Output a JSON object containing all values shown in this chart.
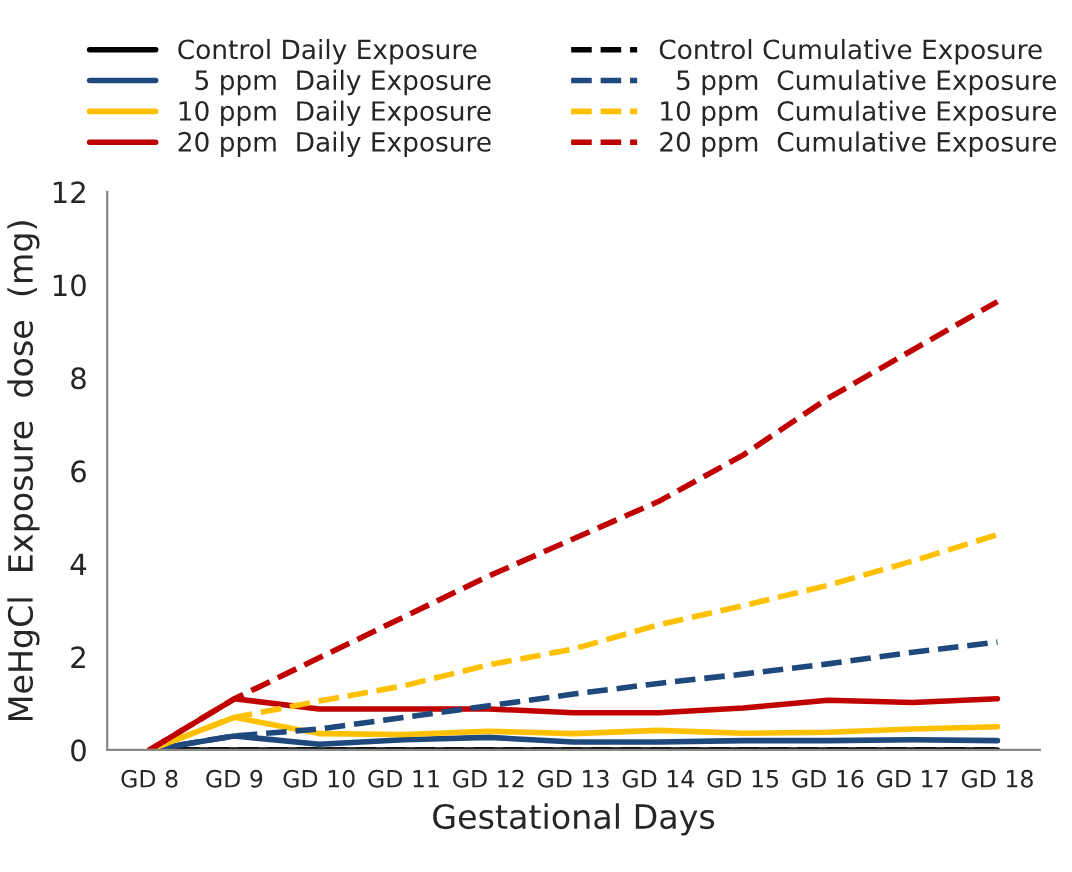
{
  "chart_data": {
    "type": "line",
    "xlabel": "Gestational Days",
    "ylabel": "MeHgCl  Exposure  dose  (mg)",
    "categories": [
      "GD 8",
      "GD 9",
      "GD 10",
      "GD 11",
      "GD 12",
      "GD 13",
      "GD 14",
      "GD 15",
      "GD 16",
      "GD 17",
      "GD 18"
    ],
    "ylim": [
      0,
      12
    ],
    "yticks": [
      0,
      2,
      4,
      6,
      8,
      10,
      12
    ],
    "grid": false,
    "legend": "top",
    "marker": "none",
    "series": [
      {
        "name": "Control Daily Exposure",
        "color": "#000000",
        "line_style": "solid",
        "values": [
          0,
          0,
          0,
          0,
          0,
          0,
          0,
          0,
          0,
          0,
          0
        ]
      },
      {
        "name": "  5 ppm  Daily Exposure",
        "color": "#1f497d",
        "line_style": "solid",
        "values": [
          0,
          0.3,
          0.12,
          0.22,
          0.27,
          0.17,
          0.17,
          0.2,
          0.2,
          0.22,
          0.2
        ]
      },
      {
        "name": "10 ppm  Daily Exposure",
        "color": "#ffc000",
        "line_style": "solid",
        "values": [
          0,
          0.7,
          0.35,
          0.33,
          0.4,
          0.35,
          0.42,
          0.36,
          0.38,
          0.45,
          0.5
        ]
      },
      {
        "name": "20 ppm  Daily Exposure",
        "color": "#c00000",
        "line_style": "solid",
        "values": [
          0,
          1.1,
          0.88,
          0.88,
          0.88,
          0.8,
          0.8,
          0.9,
          1.07,
          1.02,
          1.1
        ]
      },
      {
        "name": "Control Cumulative Exposure",
        "color": "#000000",
        "line_style": "dashed",
        "values": [
          0,
          0,
          0,
          0,
          0,
          0,
          0,
          0,
          0,
          0,
          0
        ]
      },
      {
        "name": "  5 ppm  Cumulative Exposure",
        "color": "#1f497d",
        "line_style": "dashed",
        "values": [
          0,
          0.3,
          0.45,
          0.7,
          0.95,
          1.2,
          1.43,
          1.63,
          1.85,
          2.1,
          2.32
        ]
      },
      {
        "name": "10 ppm  Cumulative Exposure",
        "color": "#ffc000",
        "line_style": "dashed",
        "values": [
          0,
          0.7,
          1.05,
          1.38,
          1.83,
          2.17,
          2.69,
          3.1,
          3.54,
          4.06,
          4.63
        ]
      },
      {
        "name": "20 ppm  Cumulative Exposure",
        "color": "#c00000",
        "line_style": "dashed",
        "values": [
          0,
          1.1,
          1.98,
          2.86,
          3.74,
          4.54,
          5.34,
          6.34,
          7.56,
          8.6,
          9.64
        ]
      }
    ]
  }
}
